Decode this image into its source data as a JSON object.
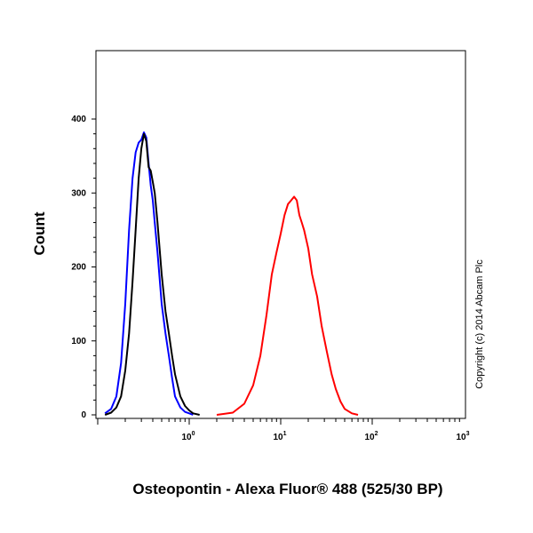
{
  "chart_data": {
    "type": "line",
    "title": "",
    "xlabel": "Osteopontin - Alexa Fluor® 488 (525/30 BP)",
    "ylabel": "Count",
    "x_scale": "log",
    "xlim": [
      0.1,
      1000
    ],
    "ylim": [
      0,
      400
    ],
    "x_ticks": [
      {
        "value": 1,
        "base": "10",
        "exp": "0"
      },
      {
        "value": 10,
        "base": "10",
        "exp": "1"
      },
      {
        "value": 100,
        "base": "10",
        "exp": "2"
      },
      {
        "value": 1000,
        "base": "10",
        "exp": "3"
      }
    ],
    "y_ticks": [
      0,
      100,
      200,
      300,
      400
    ],
    "grid": false,
    "annotation": "Copyright (c) 2014 Abcam Plc",
    "series": [
      {
        "color": "#0000ff",
        "x": [
          0.12,
          0.14,
          0.16,
          0.18,
          0.2,
          0.22,
          0.24,
          0.26,
          0.28,
          0.3,
          0.32,
          0.34,
          0.36,
          0.38,
          0.4,
          0.42,
          0.45,
          0.5,
          0.55,
          0.6,
          0.65,
          0.7,
          0.8,
          0.9,
          1.0,
          1.1
        ],
        "y": [
          2,
          8,
          25,
          70,
          150,
          250,
          320,
          355,
          368,
          372,
          382,
          375,
          340,
          310,
          290,
          260,
          220,
          150,
          110,
          80,
          50,
          25,
          10,
          4,
          2,
          0
        ]
      },
      {
        "color": "#000000",
        "x": [
          0.12,
          0.14,
          0.16,
          0.18,
          0.2,
          0.22,
          0.24,
          0.26,
          0.28,
          0.3,
          0.32,
          0.34,
          0.36,
          0.38,
          0.4,
          0.42,
          0.45,
          0.5,
          0.55,
          0.6,
          0.65,
          0.7,
          0.8,
          0.9,
          1.0,
          1.1,
          1.3
        ],
        "y": [
          0,
          3,
          10,
          25,
          60,
          110,
          180,
          250,
          320,
          360,
          380,
          370,
          335,
          330,
          315,
          300,
          260,
          190,
          140,
          110,
          80,
          55,
          25,
          12,
          6,
          2,
          0
        ]
      },
      {
        "color": "#ff0000",
        "x": [
          2,
          3,
          4,
          5,
          6,
          7,
          8,
          9,
          10,
          11,
          12,
          13,
          14,
          15,
          16,
          17,
          18,
          20,
          22,
          25,
          28,
          32,
          36,
          40,
          45,
          50,
          60,
          70
        ],
        "y": [
          0,
          3,
          15,
          40,
          80,
          135,
          190,
          220,
          245,
          270,
          285,
          290,
          295,
          290,
          270,
          260,
          250,
          225,
          190,
          160,
          120,
          85,
          55,
          35,
          18,
          8,
          2,
          0
        ]
      }
    ]
  }
}
